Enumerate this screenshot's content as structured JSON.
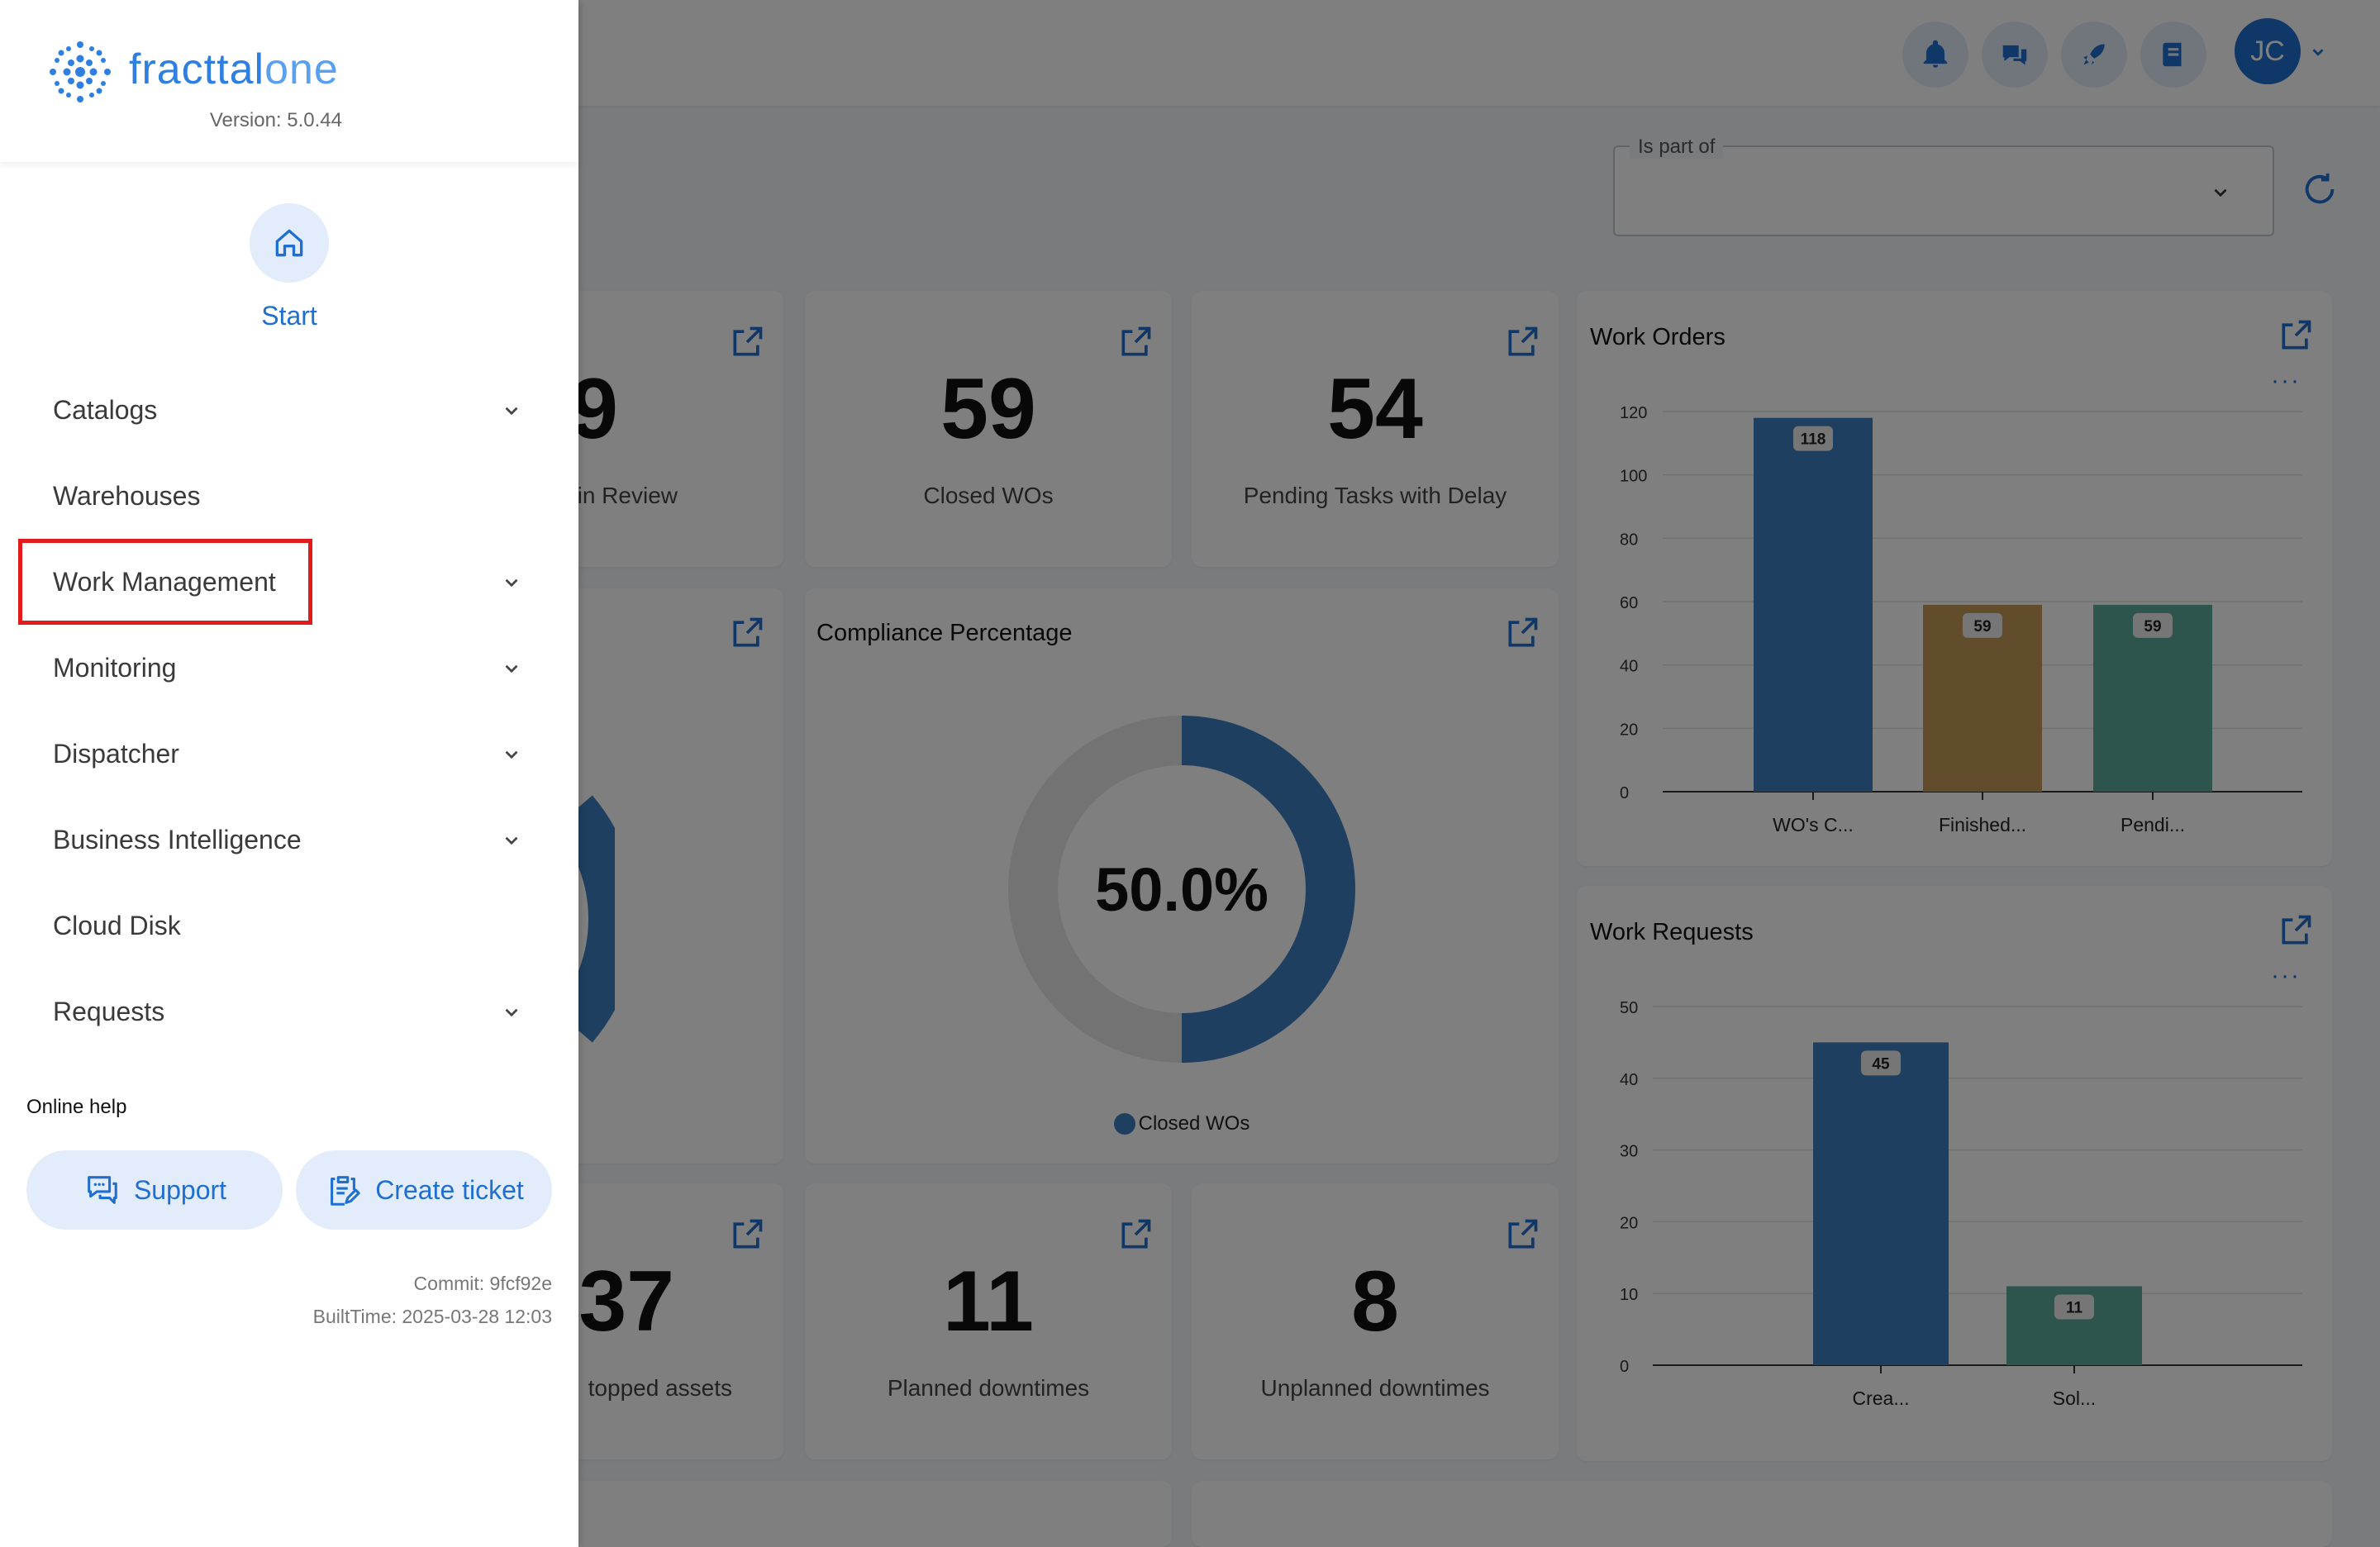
{
  "topbar": {
    "avatar_initials": "JC"
  },
  "filter": {
    "label": "Is part of",
    "value": ""
  },
  "kpis": {
    "in_review": {
      "value": "9",
      "label": "in Review"
    },
    "closed_wos": {
      "value": "59",
      "label": "Closed WOs"
    },
    "pending_delay": {
      "value": "54",
      "label": "Pending Tasks with Delay"
    },
    "stopped_assets": {
      "value": "37",
      "label": "topped assets"
    },
    "planned_downtimes": {
      "value": "11",
      "label": "Planned downtimes"
    },
    "unplanned_downtimes": {
      "value": "8",
      "label": "Unplanned downtimes"
    }
  },
  "compliance": {
    "title": "Compliance Percentage",
    "value_text": "50.0%",
    "legend": "Closed WOs"
  },
  "chart_data": [
    {
      "type": "bar",
      "title": "Work Orders",
      "categories": [
        "WO's C...",
        "Finished...",
        "Pendi..."
      ],
      "values": [
        118,
        59,
        59
      ],
      "colors": [
        "#3d7ebf",
        "#c39a57",
        "#5ba89b"
      ],
      "yticks": [
        "0",
        "20",
        "40",
        "60",
        "80",
        "100",
        "120"
      ],
      "ylim": [
        0,
        120
      ]
    },
    {
      "type": "bar",
      "title": "Work Requests",
      "categories": [
        "Crea...",
        "Sol..."
      ],
      "values": [
        45,
        11
      ],
      "colors": [
        "#3d7ebf",
        "#5ba89b"
      ],
      "yticks": [
        "0",
        "10",
        "20",
        "30",
        "40",
        "50"
      ],
      "ylim": [
        0,
        50
      ]
    },
    {
      "type": "pie",
      "title": "Compliance Percentage",
      "categories": [
        "Closed WOs",
        ""
      ],
      "values": [
        50.0,
        50.0
      ],
      "colors": [
        "#3d7ebf",
        "#e6e6e6"
      ]
    }
  ],
  "sidebar": {
    "brand": {
      "name_part1": "fracttal",
      "name_part2": "one",
      "version": "Version: 5.0.44"
    },
    "start_label": "Start",
    "items": [
      {
        "label": "Catalogs",
        "has_children": true
      },
      {
        "label": "Warehouses",
        "has_children": false
      },
      {
        "label": "Work Management",
        "has_children": true
      },
      {
        "label": "Monitoring",
        "has_children": true
      },
      {
        "label": "Dispatcher",
        "has_children": true
      },
      {
        "label": "Business Intelligence",
        "has_children": true
      },
      {
        "label": "Cloud Disk",
        "has_children": false
      },
      {
        "label": "Requests",
        "has_children": true
      }
    ],
    "help": {
      "title": "Online help",
      "support_label": "Support",
      "ticket_label": "Create ticket"
    },
    "commit": "Commit: 9fcf92e",
    "built_time": "BuiltTime: 2025-03-28 12:03"
  },
  "colors": {
    "accent": "#1f6fd0",
    "highlight_box": "#e11b1b",
    "overlay": "rgba(0,0,0,0.5)"
  }
}
